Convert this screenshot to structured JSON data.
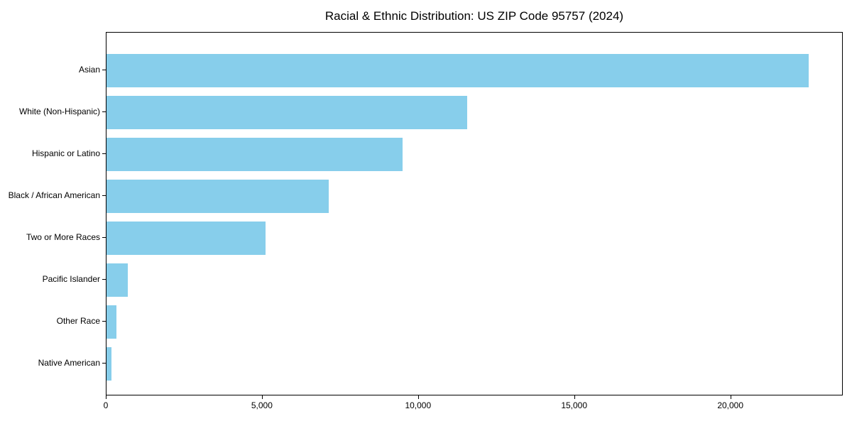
{
  "figure": {
    "background": "#ffffff"
  },
  "chart_data": {
    "type": "bar",
    "orientation": "horizontal",
    "title": "Racial & Ethnic Distribution: US ZIP Code 95757 (2024)",
    "categories": [
      "Asian",
      "White (Non-Hispanic)",
      "Hispanic or Latino",
      "Black / African American",
      "Two or More Races",
      "Pacific Islander",
      "Other Race",
      "Native American"
    ],
    "values": [
      22480,
      11540,
      9470,
      7120,
      5100,
      680,
      320,
      160
    ],
    "bar_color": "#87CEEB",
    "text_color": "#000000",
    "xlabel": "",
    "ylabel": "",
    "xlim": [
      0,
      23600
    ],
    "xticks": [
      0,
      5000,
      10000,
      15000,
      20000
    ],
    "xtick_labels": [
      "0",
      "5,000",
      "10,000",
      "15,000",
      "20,000"
    ],
    "grid": false,
    "legend": null,
    "frame": true
  }
}
